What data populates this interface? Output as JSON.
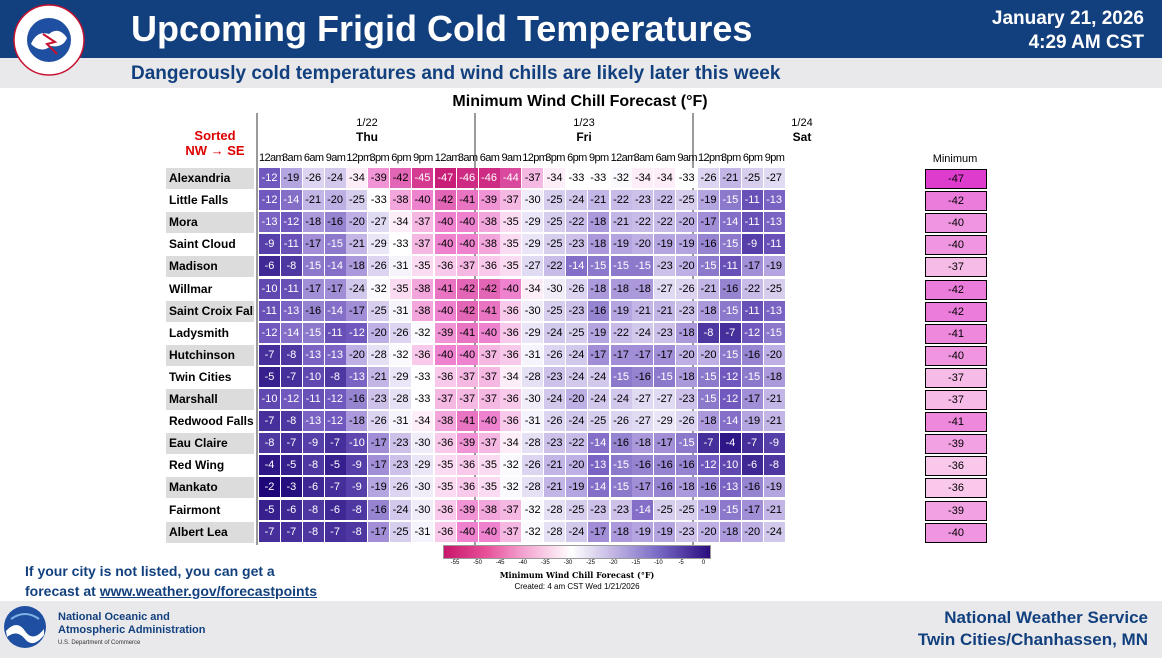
{
  "header": {
    "title": "Upcoming Frigid Cold Temperatures",
    "date": "January 21, 2026",
    "time": "4:29 AM CST",
    "subtitle": "Dangerously cold temperatures and wind chills are likely later this week",
    "logo_text": "NATIONAL WEATHER SERVICE",
    "logo_icon": "nws-logo"
  },
  "table": {
    "title": "Minimum Wind Chill Forecast (°F)",
    "sorted_line1": "Sorted",
    "sorted_line2": "NW → SE",
    "days": [
      {
        "date": "1/22",
        "name": "Thu"
      },
      {
        "date": "1/23",
        "name": "Fri"
      },
      {
        "date": "1/24",
        "name": "Sat"
      }
    ],
    "hours": [
      "12am",
      "3am",
      "6am",
      "9am",
      "12pm",
      "3pm",
      "6pm",
      "9pm",
      "12am",
      "3am",
      "6am",
      "9am",
      "12pm",
      "3pm",
      "6pm",
      "9pm",
      "12am",
      "3am",
      "6am",
      "9am",
      "12pm",
      "3pm",
      "6pm",
      "9pm"
    ],
    "minimum_header": "Minimum",
    "rows": [
      {
        "city": "Alexandria",
        "values": [
          -12,
          -19,
          -26,
          -24,
          -34,
          -39,
          -42,
          -45,
          -47,
          -46,
          -46,
          -44,
          -37,
          -34,
          -33,
          -33,
          -32,
          -34,
          -34,
          -33,
          -26,
          -21,
          -25,
          -27
        ],
        "min": -47
      },
      {
        "city": "Little Falls",
        "values": [
          -12,
          -14,
          -21,
          -20,
          -25,
          -33,
          -38,
          -40,
          -42,
          -41,
          -39,
          -37,
          -30,
          -25,
          -24,
          -21,
          -22,
          -23,
          -22,
          -25,
          -19,
          -15,
          -11,
          -13
        ],
        "min": -42
      },
      {
        "city": "Mora",
        "values": [
          -13,
          -12,
          -18,
          -16,
          -20,
          -27,
          -34,
          -37,
          -40,
          -40,
          -38,
          -35,
          -29,
          -25,
          -22,
          -18,
          -21,
          -22,
          -22,
          -20,
          -17,
          -14,
          -11,
          -13
        ],
        "min": -40
      },
      {
        "city": "Saint Cloud",
        "values": [
          -9,
          -11,
          -17,
          -15,
          -21,
          -29,
          -33,
          -37,
          -40,
          -40,
          -38,
          -35,
          -29,
          -25,
          -23,
          -18,
          -19,
          -20,
          -19,
          -19,
          -16,
          -15,
          -9,
          -11
        ],
        "min": -40
      },
      {
        "city": "Madison",
        "values": [
          -6,
          -8,
          -15,
          -14,
          -18,
          -26,
          -31,
          -35,
          -36,
          -37,
          -36,
          -35,
          -27,
          -22,
          -14,
          -15,
          -15,
          -15,
          -23,
          -20,
          -15,
          -11,
          -17,
          -19
        ],
        "min": -37
      },
      {
        "city": "Willmar",
        "values": [
          -10,
          -11,
          -17,
          -17,
          -24,
          -32,
          -35,
          -38,
          -41,
          -42,
          -42,
          -40,
          -34,
          -30,
          -26,
          -18,
          -18,
          -18,
          -27,
          -26,
          -21,
          -16,
          -22,
          -25
        ],
        "min": -42
      },
      {
        "city": "Saint Croix Falls",
        "values": [
          -11,
          -13,
          -16,
          -14,
          -17,
          -25,
          -31,
          -38,
          -40,
          -42,
          -41,
          -36,
          -30,
          -25,
          -23,
          -16,
          -19,
          -21,
          -21,
          -23,
          -18,
          -15,
          -11,
          -13
        ],
        "min": -42
      },
      {
        "city": "Ladysmith",
        "values": [
          -12,
          -14,
          -15,
          -11,
          -12,
          -20,
          -26,
          -32,
          -39,
          -41,
          -40,
          -36,
          -29,
          -24,
          -25,
          -19,
          -22,
          -24,
          -23,
          -18,
          -8,
          -7,
          -12,
          -15
        ],
        "min": -41
      },
      {
        "city": "Hutchinson",
        "values": [
          -7,
          -8,
          -13,
          -13,
          -20,
          -28,
          -32,
          -36,
          -40,
          -40,
          -37,
          -36,
          -31,
          -26,
          -24,
          -17,
          -17,
          -17,
          -17,
          -20,
          -20,
          -15,
          -16,
          -20
        ],
        "min": -40
      },
      {
        "city": "Twin Cities",
        "values": [
          -5,
          -7,
          -10,
          -8,
          -13,
          -21,
          -29,
          -33,
          -36,
          -37,
          -37,
          -34,
          -28,
          -23,
          -24,
          -24,
          -15,
          -16,
          -15,
          -18,
          -15,
          -12,
          -15,
          -18
        ],
        "min": -37
      },
      {
        "city": "Marshall",
        "values": [
          -10,
          -12,
          -11,
          -12,
          -16,
          -23,
          -28,
          -33,
          -37,
          -37,
          -37,
          -36,
          -30,
          -24,
          -20,
          -24,
          -24,
          -27,
          -27,
          -23,
          -15,
          -12,
          -17,
          -21
        ],
        "min": -37
      },
      {
        "city": "Redwood Falls",
        "values": [
          -7,
          -8,
          -13,
          -12,
          -18,
          -26,
          -31,
          -34,
          -38,
          -41,
          -40,
          -36,
          -31,
          -26,
          -24,
          -25,
          -26,
          -27,
          -29,
          -26,
          -18,
          -14,
          -19,
          -21
        ],
        "min": -41
      },
      {
        "city": "Eau Claire",
        "values": [
          -8,
          -7,
          -9,
          -7,
          -10,
          -17,
          -23,
          -30,
          -36,
          -39,
          -37,
          -34,
          -28,
          -23,
          -22,
          -14,
          -16,
          -18,
          -17,
          -15,
          -7,
          -4,
          -7,
          -9
        ],
        "min": -39
      },
      {
        "city": "Red Wing",
        "values": [
          -4,
          -5,
          -8,
          -5,
          -9,
          -17,
          -23,
          -29,
          -35,
          -36,
          -35,
          -32,
          -26,
          -21,
          -20,
          -13,
          -15,
          -16,
          -16,
          -16,
          -12,
          -10,
          -6,
          -8
        ],
        "min": -36
      },
      {
        "city": "Mankato",
        "values": [
          -2,
          -3,
          -6,
          -7,
          -9,
          -19,
          -26,
          -30,
          -35,
          -36,
          -35,
          -32,
          -28,
          -21,
          -19,
          -14,
          -15,
          -17,
          -16,
          -18,
          -16,
          -13,
          -16,
          -19
        ],
        "min": -36
      },
      {
        "city": "Fairmont",
        "values": [
          -5,
          -6,
          -8,
          -6,
          -8,
          -16,
          -24,
          -30,
          -36,
          -39,
          -38,
          -37,
          -32,
          -28,
          -25,
          -23,
          -23,
          -14,
          -25,
          -25,
          -19,
          -15,
          -17,
          -21
        ],
        "min": -39
      },
      {
        "city": "Albert Lea",
        "values": [
          -7,
          -7,
          -8,
          -7,
          -8,
          -17,
          -25,
          -31,
          -36,
          -40,
          -40,
          -37,
          -32,
          -28,
          -24,
          -17,
          -18,
          -19,
          -19,
          -23,
          -20,
          -18,
          -20,
          -24
        ],
        "min": -40
      }
    ]
  },
  "colorbar": {
    "ticks": [
      "-55",
      "-50",
      "-45",
      "-40",
      "-35",
      "-30",
      "-25",
      "-20",
      "-15",
      "-10",
      "-5",
      "0"
    ],
    "label": "Minimum Wind Chill Forecast (°F)",
    "created": "Created: 4 am CST Wed 1/21/2026",
    "colors": {
      "coldest": "#c7166b",
      "mid": "#ffffff",
      "warmest": "#2b0c80"
    }
  },
  "note": {
    "line1": "If your city is not listed, you can get a",
    "line2_prefix": "forecast at ",
    "link": "www.weather.gov/forecastpoints"
  },
  "footer": {
    "noaa_line1": "National Oceanic and",
    "noaa_line2": "Atmospheric Administration",
    "noaa_dept": "U.S. Department of Commerce",
    "nws_line1": "National Weather Service",
    "nws_line2": "Twin Cities/Chanhassen, MN",
    "noaa_icon": "noaa-logo"
  },
  "colors": {
    "brand_blue": "#12407e",
    "alert_red": "#dd0000",
    "footer_gray": "#e9e9ec"
  }
}
